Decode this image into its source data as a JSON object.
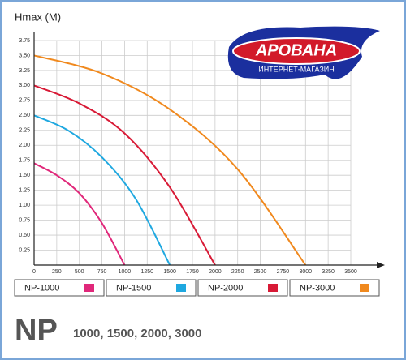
{
  "chart_data": {
    "type": "line",
    "y_label": "Hmax (M)",
    "xlim": [
      0,
      3500
    ],
    "ylim": [
      0,
      3.75
    ],
    "xticks": [
      0,
      250,
      500,
      750,
      1000,
      1250,
      1500,
      1750,
      2000,
      2250,
      2500,
      2750,
      3000,
      3250,
      3500
    ],
    "yticks": [
      0.25,
      {
        "value": 0.5,
        "label": "0.50"
      },
      0.75,
      {
        "value": 1,
        "label": "1.00"
      },
      1.25,
      {
        "value": 1.5,
        "label": "1.50"
      },
      1.75,
      {
        "value": 2,
        "label": "2.00"
      },
      2.25,
      {
        "value": 2.5,
        "label": "2.50"
      },
      2.75,
      {
        "value": 3,
        "label": "3.00"
      },
      3.25,
      {
        "value": 3.5,
        "label": "3.50"
      },
      3.75
    ],
    "grid": true,
    "series": [
      {
        "name": "NP-1000",
        "color": "#e0287a",
        "x": [
          0,
          250,
          500,
          750,
          1000
        ],
        "values": [
          1.7,
          1.5,
          1.2,
          0.7,
          0
        ]
      },
      {
        "name": "NP-1500",
        "color": "#1fa8e0",
        "x": [
          0,
          375,
          750,
          1125,
          1500
        ],
        "values": [
          2.5,
          2.25,
          1.8,
          1.1,
          0
        ]
      },
      {
        "name": "NP-2000",
        "color": "#d81a36",
        "x": [
          0,
          500,
          1000,
          1500,
          2000
        ],
        "values": [
          3.0,
          2.7,
          2.2,
          1.3,
          0
        ]
      },
      {
        "name": "NP-3000",
        "color": "#f0891e",
        "x": [
          0,
          750,
          1500,
          2250,
          3000
        ],
        "values": [
          3.5,
          3.2,
          2.6,
          1.6,
          0
        ]
      }
    ]
  },
  "logo": {
    "name": "АРОВАНА",
    "tagline": "ИНТЕРНЕТ-МАГАЗИН"
  },
  "footer": {
    "model": "NP",
    "sizes": "1000, 1500, 2000, 3000"
  }
}
